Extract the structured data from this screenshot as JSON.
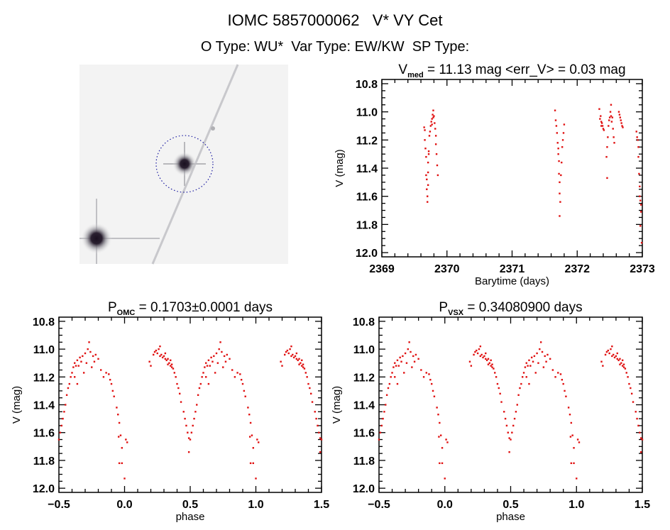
{
  "header": {
    "title": "IOMC 5857000062   V* VY Cet",
    "subtitle": "O Type: WU*  Var Type: EW/KW  SP Type:"
  },
  "colors": {
    "points": "#e01010",
    "circle": "#1a1aa0",
    "frame": "#000000"
  },
  "chart_data": [
    {
      "id": "lightcurve",
      "type": "scatter",
      "title": {
        "main": "V",
        "sub": "med",
        "rest": " = 11.13 mag <err_V> = 0.03 mag"
      },
      "xlabel": "Barytime (days)",
      "ylabel": "V (mag)",
      "xlim": [
        2369,
        2373
      ],
      "ylim": [
        10.77,
        12.03
      ],
      "y_inverted": true,
      "xticks": [
        2369,
        2370,
        2371,
        2372,
        2373
      ],
      "xtick_labels": [
        "2369",
        "2370",
        "2371",
        "2372",
        "2373"
      ],
      "yticks": [
        10.8,
        11.0,
        11.2,
        11.4,
        11.6,
        11.8,
        12.0
      ],
      "ytick_labels": [
        "10.8",
        "11.0",
        "11.2",
        "11.4",
        "11.6",
        "11.8",
        "12.0"
      ],
      "points": [
        [
          2369.65,
          11.11
        ],
        [
          2369.66,
          11.13
        ],
        [
          2369.66,
          11.2
        ],
        [
          2369.67,
          11.26
        ],
        [
          2369.68,
          11.32
        ],
        [
          2369.68,
          11.45
        ],
        [
          2369.69,
          11.48
        ],
        [
          2369.69,
          11.55
        ],
        [
          2369.7,
          11.6
        ],
        [
          2369.7,
          11.64
        ],
        [
          2369.71,
          11.43
        ],
        [
          2369.71,
          11.36
        ],
        [
          2369.72,
          11.28
        ],
        [
          2369.72,
          11.3
        ],
        [
          2369.73,
          11.17
        ],
        [
          2369.74,
          11.14
        ],
        [
          2369.75,
          11.1
        ],
        [
          2369.76,
          11.07
        ],
        [
          2369.77,
          11.05
        ],
        [
          2369.78,
          11.02
        ],
        [
          2369.79,
          10.99
        ],
        [
          2369.79,
          11.04
        ],
        [
          2369.8,
          11.03
        ],
        [
          2369.81,
          11.08
        ],
        [
          2369.82,
          11.12
        ],
        [
          2369.83,
          11.17
        ],
        [
          2369.83,
          11.23
        ],
        [
          2369.84,
          11.3
        ],
        [
          2369.85,
          11.38
        ],
        [
          2369.86,
          11.45
        ],
        [
          2369.71,
          11.52
        ],
        [
          2369.77,
          11.09
        ],
        [
          2371.66,
          10.99
        ],
        [
          2371.67,
          11.06
        ],
        [
          2371.68,
          11.1
        ],
        [
          2371.69,
          11.15
        ],
        [
          2371.7,
          11.22
        ],
        [
          2371.71,
          11.3
        ],
        [
          2371.72,
          11.35
        ],
        [
          2371.72,
          11.44
        ],
        [
          2371.73,
          11.5
        ],
        [
          2371.73,
          11.58
        ],
        [
          2371.74,
          11.64
        ],
        [
          2371.73,
          11.74
        ],
        [
          2371.75,
          11.45
        ],
        [
          2371.76,
          11.36
        ],
        [
          2371.77,
          11.25
        ],
        [
          2371.78,
          11.2
        ],
        [
          2371.79,
          11.15
        ],
        [
          2371.8,
          11.09
        ],
        [
          2371.71,
          11.26
        ],
        [
          2372.34,
          10.98
        ],
        [
          2372.35,
          11.05
        ],
        [
          2372.36,
          11.03
        ],
        [
          2372.37,
          11.07
        ],
        [
          2372.38,
          11.08
        ],
        [
          2372.39,
          11.1
        ],
        [
          2372.4,
          11.12
        ],
        [
          2372.41,
          11.13
        ],
        [
          2372.37,
          11.1
        ],
        [
          2372.45,
          11.32
        ],
        [
          2372.46,
          11.47
        ],
        [
          2372.46,
          11.25
        ],
        [
          2372.47,
          11.18
        ],
        [
          2372.48,
          11.1
        ],
        [
          2372.49,
          11.06
        ],
        [
          2372.5,
          11.04
        ],
        [
          2372.51,
          11.0
        ],
        [
          2372.52,
          10.95
        ],
        [
          2372.52,
          11.03
        ],
        [
          2372.53,
          11.07
        ],
        [
          2372.54,
          11.04
        ],
        [
          2372.55,
          11.12
        ],
        [
          2372.56,
          11.18
        ],
        [
          2372.57,
          11.22
        ],
        [
          2372.64,
          11.0
        ],
        [
          2372.65,
          11.02
        ],
        [
          2372.66,
          11.04
        ],
        [
          2372.67,
          11.06
        ],
        [
          2372.68,
          11.08
        ],
        [
          2372.69,
          11.1
        ],
        [
          2372.7,
          11.11
        ],
        [
          2372.91,
          11.14
        ],
        [
          2372.92,
          11.18
        ],
        [
          2372.93,
          11.2
        ],
        [
          2372.94,
          11.25
        ],
        [
          2372.94,
          11.32
        ],
        [
          2372.95,
          11.44
        ],
        [
          2372.96,
          11.53
        ],
        [
          2372.96,
          11.6
        ],
        [
          2372.97,
          11.63
        ],
        [
          2372.98,
          11.66
        ],
        [
          2372.98,
          11.71
        ],
        [
          2372.97,
          11.81
        ],
        [
          2372.99,
          11.93
        ]
      ]
    },
    {
      "id": "phase-omc",
      "type": "scatter",
      "title": {
        "main": "P",
        "sub": "OMC",
        "rest": " = 0.1703±0.0001 days"
      },
      "xlabel": "phase",
      "ylabel": "V (mag)",
      "xlim": [
        -0.5,
        1.5
      ],
      "ylim": [
        10.77,
        12.03
      ],
      "y_inverted": true,
      "xticks": [
        -0.5,
        0.0,
        0.5,
        1.0,
        1.5
      ],
      "xtick_labels": [
        "−0.5",
        "0.0",
        "0.5",
        "1.0",
        "1.5"
      ],
      "yticks": [
        10.8,
        11.0,
        11.2,
        11.4,
        11.6,
        11.8,
        12.0
      ],
      "ytick_labels": [
        "10.8",
        "11.0",
        "11.2",
        "11.4",
        "11.6",
        "11.8",
        "12.0"
      ],
      "phase_points": "folded"
    },
    {
      "id": "phase-vsx",
      "type": "scatter",
      "title": {
        "main": "P",
        "sub": "VSX",
        "rest": " = 0.34080900 days"
      },
      "xlabel": "phase",
      "ylabel": "V (mag)",
      "xlim": [
        -0.5,
        1.5
      ],
      "ylim": [
        10.77,
        12.03
      ],
      "y_inverted": true,
      "xticks": [
        -0.5,
        0.0,
        0.5,
        1.0,
        1.5
      ],
      "xtick_labels": [
        "−0.5",
        "0.0",
        "0.5",
        "1.0",
        "1.5"
      ],
      "yticks": [
        10.8,
        11.0,
        11.2,
        11.4,
        11.6,
        11.8,
        12.0
      ],
      "ytick_labels": [
        "10.8",
        "11.0",
        "11.2",
        "11.4",
        "11.6",
        "11.8",
        "12.0"
      ],
      "phase_points": "folded"
    }
  ],
  "folded": [
    [
      0.19,
      11.09
    ],
    [
      0.2,
      11.12
    ],
    [
      0.22,
      11.04
    ],
    [
      0.23,
      11.02
    ],
    [
      0.24,
      11.01
    ],
    [
      0.25,
      11.03
    ],
    [
      0.26,
      11.0
    ],
    [
      0.27,
      11.05
    ],
    [
      0.28,
      11.04
    ],
    [
      0.29,
      11.06
    ],
    [
      0.3,
      11.05
    ],
    [
      0.31,
      11.07
    ],
    [
      0.32,
      11.08
    ],
    [
      0.33,
      11.07
    ],
    [
      0.34,
      11.1
    ],
    [
      0.35,
      11.12
    ],
    [
      0.36,
      11.11
    ],
    [
      0.37,
      11.14
    ],
    [
      0.38,
      11.17
    ],
    [
      0.39,
      11.2
    ],
    [
      0.4,
      11.25
    ],
    [
      0.41,
      11.28
    ],
    [
      0.42,
      11.32
    ],
    [
      0.43,
      11.38
    ],
    [
      0.45,
      11.45
    ],
    [
      0.46,
      11.5
    ],
    [
      0.47,
      11.55
    ],
    [
      0.48,
      11.6
    ],
    [
      0.49,
      11.64
    ],
    [
      0.5,
      11.65
    ],
    [
      0.49,
      11.74
    ],
    [
      0.51,
      11.6
    ],
    [
      0.52,
      11.55
    ],
    [
      0.53,
      11.5
    ],
    [
      0.54,
      11.45
    ],
    [
      0.55,
      11.4
    ],
    [
      0.56,
      11.33
    ],
    [
      0.57,
      11.28
    ],
    [
      0.58,
      11.25
    ],
    [
      0.59,
      11.2
    ],
    [
      0.6,
      11.17
    ],
    [
      0.61,
      11.13
    ],
    [
      0.62,
      11.1
    ],
    [
      0.63,
      11.12
    ],
    [
      0.64,
      11.08
    ],
    [
      0.66,
      11.06
    ],
    [
      0.68,
      11.05
    ],
    [
      0.7,
      11.03
    ],
    [
      0.72,
      11.0
    ],
    [
      0.73,
      10.95
    ],
    [
      0.74,
      11.02
    ],
    [
      0.76,
      11.05
    ],
    [
      0.78,
      11.04
    ],
    [
      0.8,
      11.07
    ],
    [
      0.82,
      11.15
    ],
    [
      0.84,
      11.2
    ],
    [
      0.86,
      11.17
    ],
    [
      0.88,
      11.18
    ],
    [
      0.89,
      11.22
    ],
    [
      0.9,
      11.25
    ],
    [
      0.91,
      11.3
    ],
    [
      0.92,
      11.34
    ],
    [
      0.94,
      11.42
    ],
    [
      0.95,
      11.47
    ],
    [
      0.96,
      11.53
    ],
    [
      0.955,
      11.63
    ],
    [
      0.97,
      11.62
    ],
    [
      0.98,
      11.71
    ],
    [
      0.96,
      11.82
    ],
    [
      0.98,
      11.82
    ],
    [
      1.0,
      11.93
    ],
    [
      1.01,
      11.65
    ],
    [
      1.02,
      11.67
    ],
    [
      0.67,
      11.09
    ],
    [
      0.71,
      11.1
    ],
    [
      0.75,
      11.13
    ],
    [
      0.64,
      11.25
    ],
    [
      0.69,
      11.17
    ],
    [
      0.27,
      10.98
    ],
    [
      0.33,
      11.11
    ],
    [
      0.35,
      11.08
    ],
    [
      0.36,
      11.13
    ],
    [
      0.31,
      11.03
    ],
    [
      0.62,
      11.2
    ],
    [
      0.65,
      11.12
    ],
    [
      0.77,
      11.09
    ]
  ]
}
